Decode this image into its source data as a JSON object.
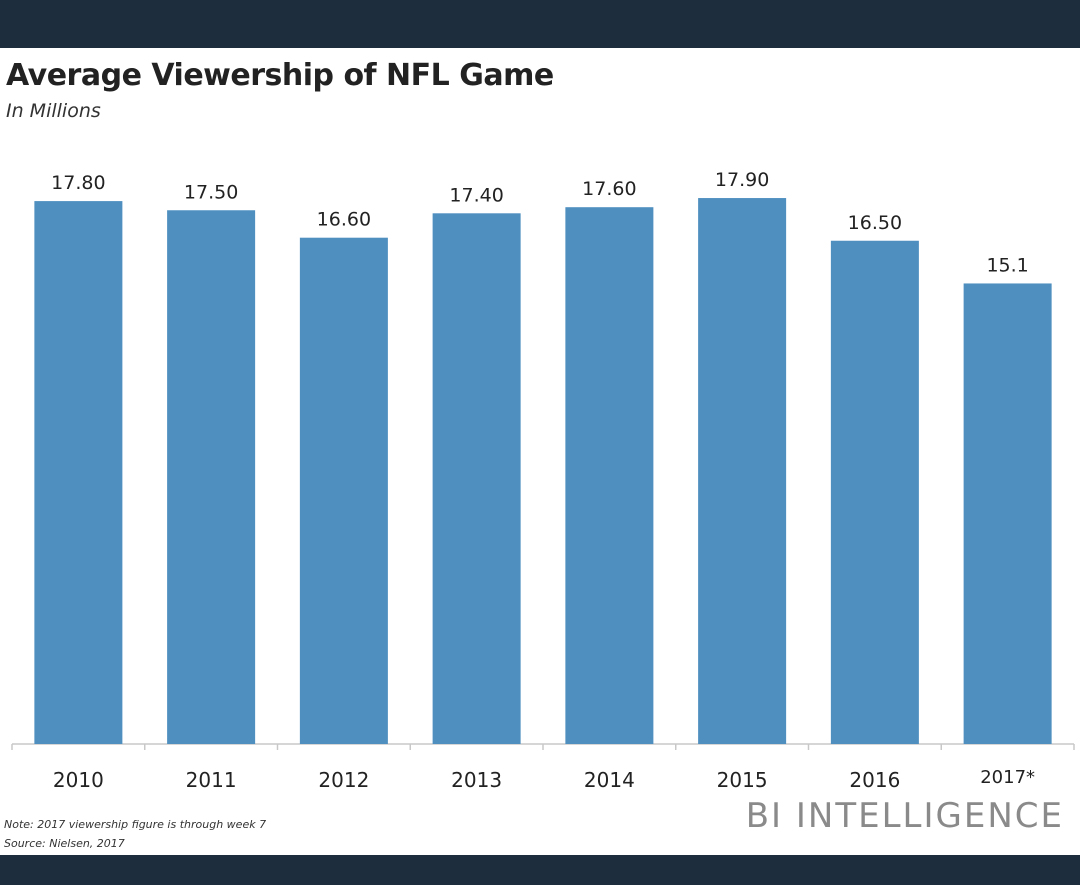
{
  "chart_data": {
    "type": "bar",
    "title": "Average Viewership of NFL Game",
    "subtitle": "In Millions",
    "categories": [
      "2010",
      "2011",
      "2012",
      "2013",
      "2014",
      "2015",
      "2016",
      "2017*"
    ],
    "values": [
      17.8,
      17.5,
      16.6,
      17.4,
      17.6,
      17.9,
      16.5,
      15.1
    ],
    "value_labels": [
      "17.80",
      "17.50",
      "16.60",
      "17.40",
      "17.60",
      "17.90",
      "16.50",
      "15.1"
    ],
    "ylim": [
      0,
      19
    ],
    "grid": false,
    "legend": "none",
    "bar_color": "#4e8fc0",
    "axis_color": "#c8c8c8"
  },
  "footer": {
    "note": "Note: 2017 viewership figure is through week 7",
    "source": "Source: Nielsen, 2017",
    "brand": "BI INTELLIGENCE"
  }
}
